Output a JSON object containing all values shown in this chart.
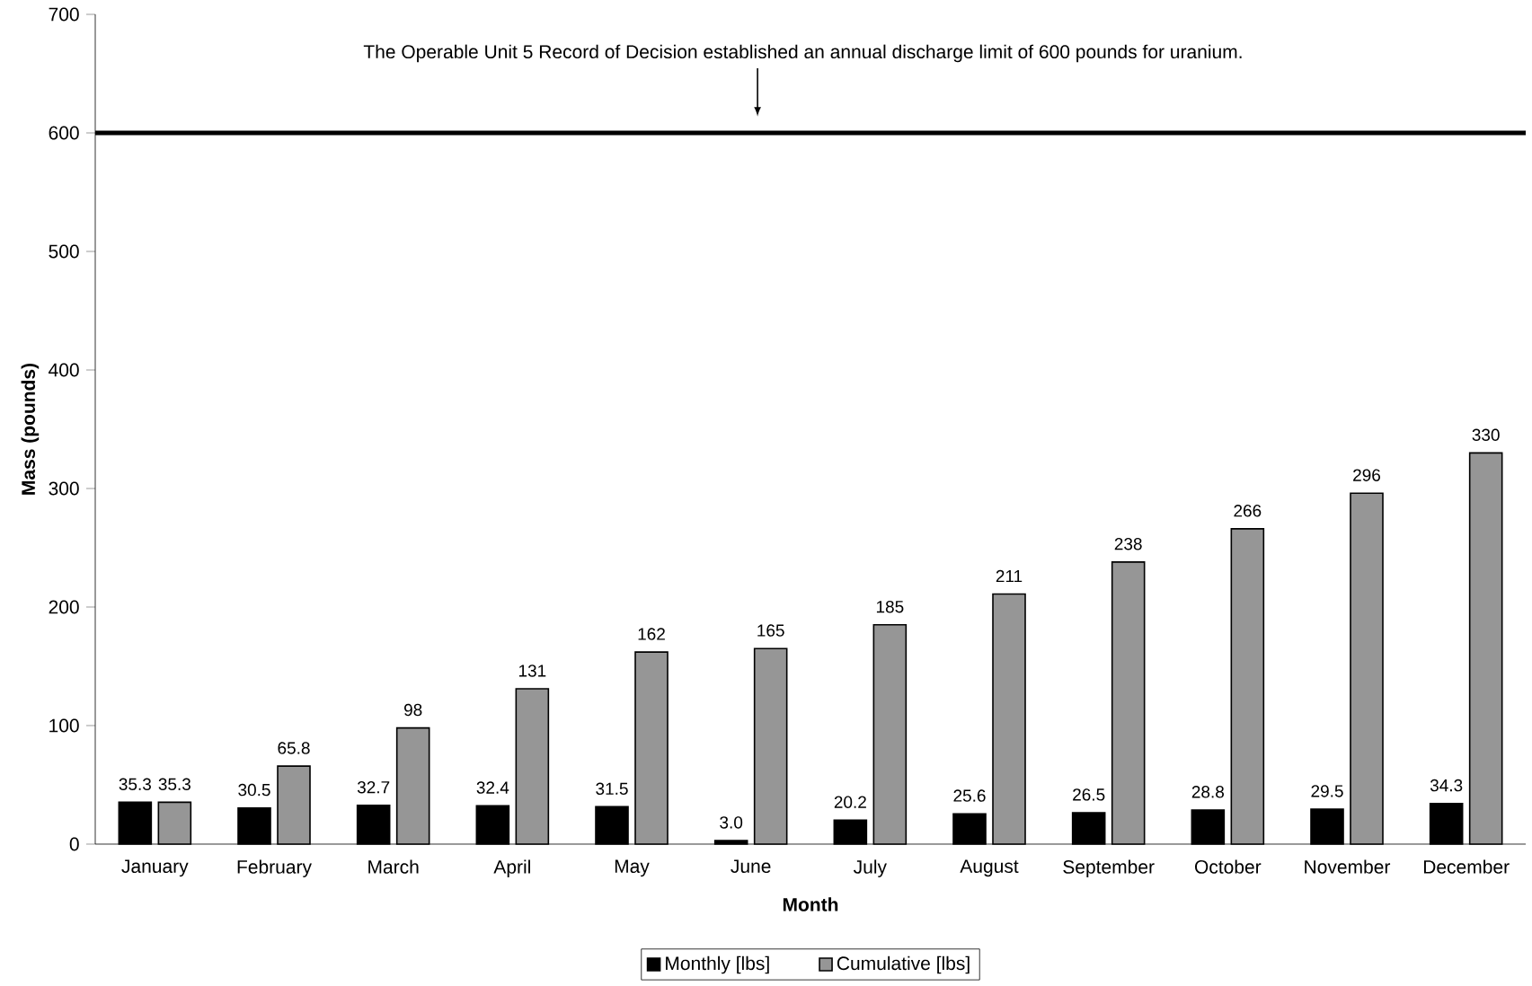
{
  "chart_data": {
    "type": "bar",
    "xlabel": "Month",
    "ylabel": "Mass (pounds)",
    "categories": [
      "January",
      "February",
      "March",
      "April",
      "May",
      "June",
      "July",
      "August",
      "September",
      "October",
      "November",
      "December"
    ],
    "series": [
      {
        "name": "Monthly [lbs]",
        "color": "#000000",
        "values": [
          35.3,
          30.5,
          32.7,
          32.4,
          31.5,
          3.0,
          20.2,
          25.6,
          26.5,
          28.8,
          29.5,
          34.3
        ],
        "value_labels": [
          "35.3",
          "30.5",
          "32.7",
          "32.4",
          "31.5",
          "3.0",
          "20.2",
          "25.6",
          "26.5",
          "28.8",
          "29.5",
          "34.3"
        ]
      },
      {
        "name": "Cumulative [lbs]",
        "color": "#969696",
        "values": [
          35.3,
          65.8,
          98,
          131,
          162,
          165,
          185,
          211,
          238,
          266,
          296,
          330
        ],
        "value_labels": [
          "35.3",
          "65.8",
          "98",
          "131",
          "162",
          "165",
          "185",
          "211",
          "238",
          "266",
          "296",
          "330"
        ]
      }
    ],
    "ylim": [
      0,
      700
    ],
    "yticks": [
      0,
      100,
      200,
      300,
      400,
      500,
      600,
      700
    ],
    "ref_lines": [
      {
        "axis": "y",
        "value": 600,
        "color": "#000000"
      }
    ],
    "annotations": [
      "The Operable Unit 5 Record of Decision established an annual discharge limit of 600 pounds for uranium."
    ],
    "grid": false,
    "legend": "bottom"
  }
}
